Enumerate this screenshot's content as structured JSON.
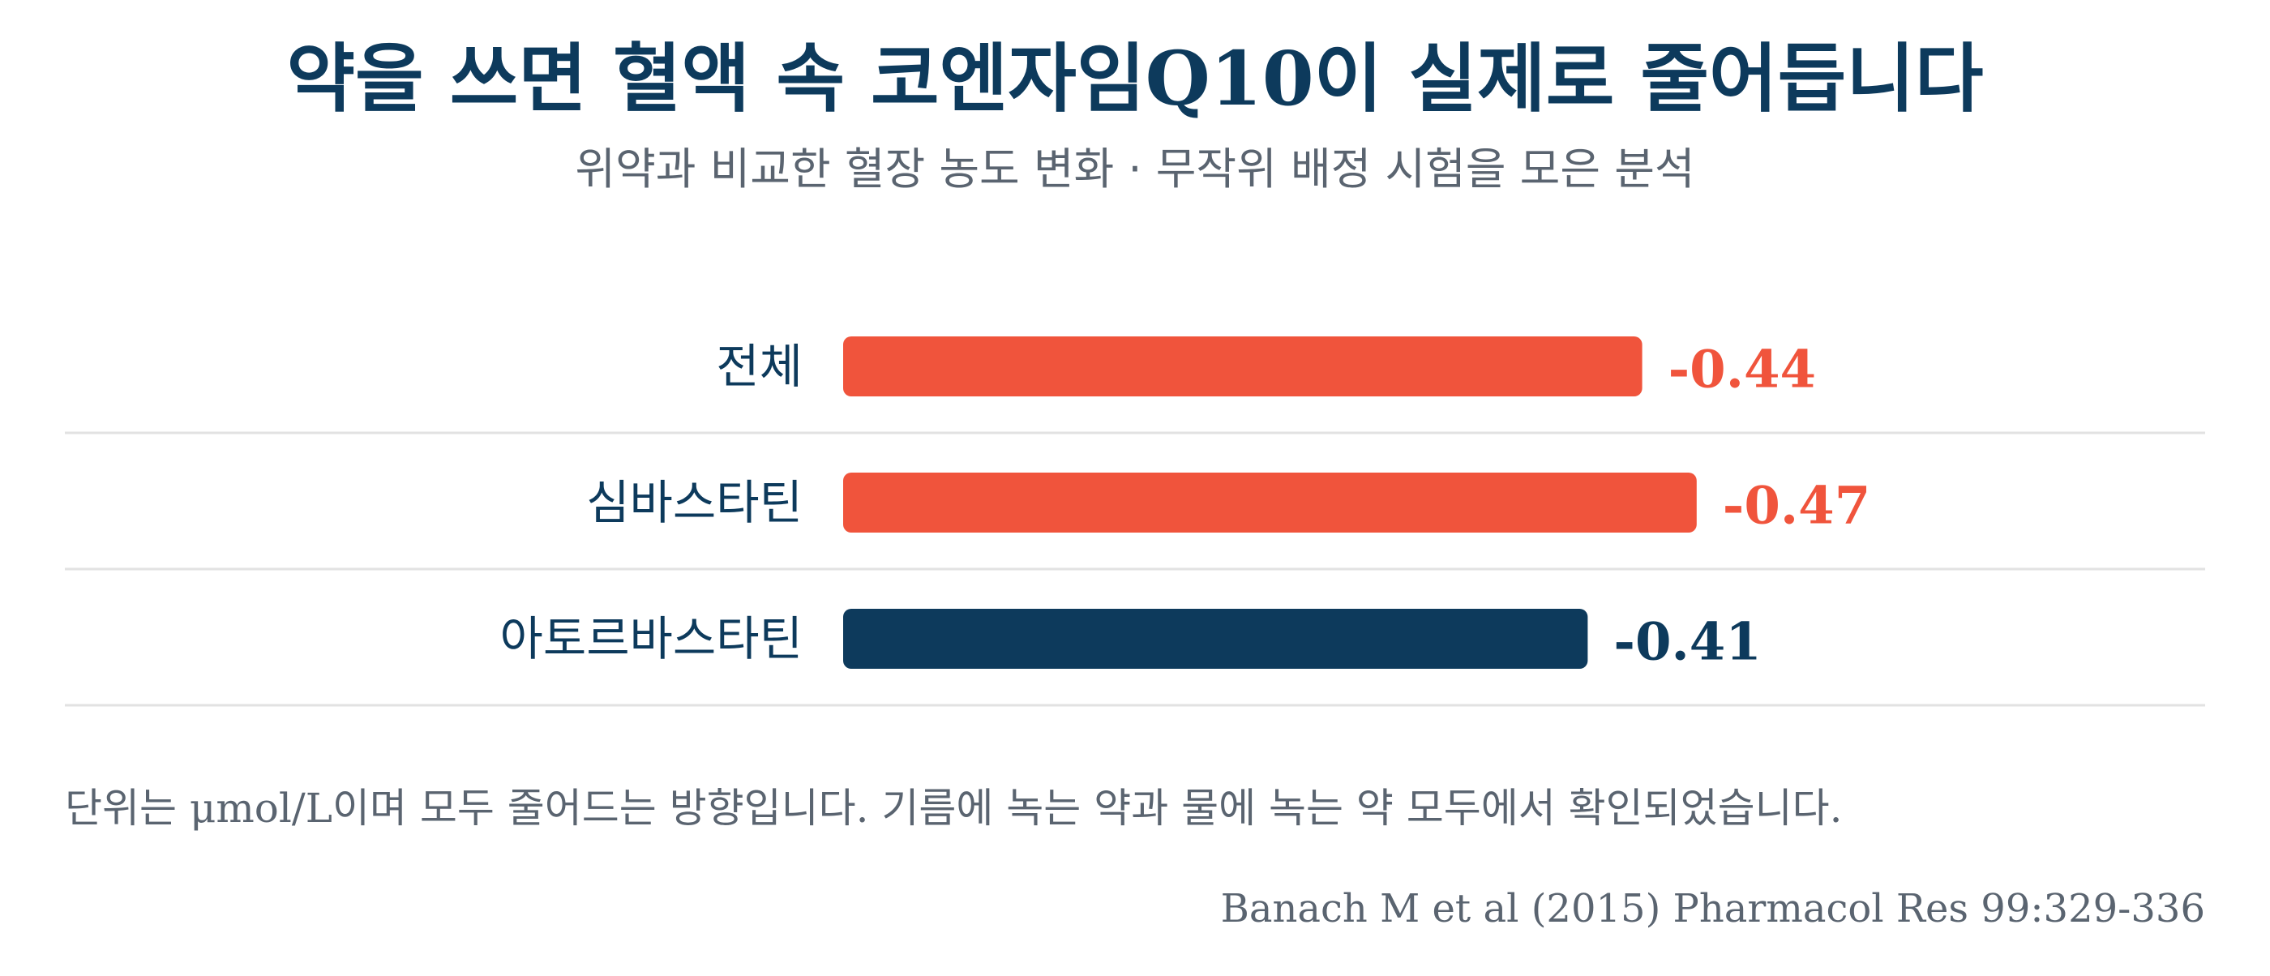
{
  "header": {
    "title": "약을 쓰면 혈액 속 코엔자임Q10이 실제로 줄어듭니다",
    "subtitle": "위약과 비교한 혈장 농도 변화 · 무작위 배정 시험을 모은 분석"
  },
  "chart_data": {
    "type": "bar",
    "orientation": "horizontal",
    "categories": [
      "전체",
      "심바스타틴",
      "아토르바스타틴"
    ],
    "values": [
      -0.44,
      -0.47,
      -0.41
    ],
    "value_labels": [
      "-0.44",
      "-0.47",
      "-0.41"
    ],
    "bar_colors": [
      "#f0543c",
      "#f0543c",
      "#0d3a5c"
    ],
    "unit": "μmol/L",
    "title": "약을 쓰면 혈액 속 코엔자임Q10이 실제로 줄어듭니다",
    "xlabel": "",
    "ylabel": "",
    "grid": false,
    "row_separators": true
  },
  "footer": {
    "note": "단위는 μmol/L이며 모두 줄어드는 방향입니다. 기름에 녹는 약과 물에 녹는 약 모두에서 확인되었습니다.",
    "source": "Banach M et al (2015) Pharmacol Res 99:329-336"
  },
  "colors": {
    "accent": "#f0543c",
    "primary": "#0d3a5c",
    "muted": "#5a6470",
    "separator": "#e2e2e2"
  }
}
